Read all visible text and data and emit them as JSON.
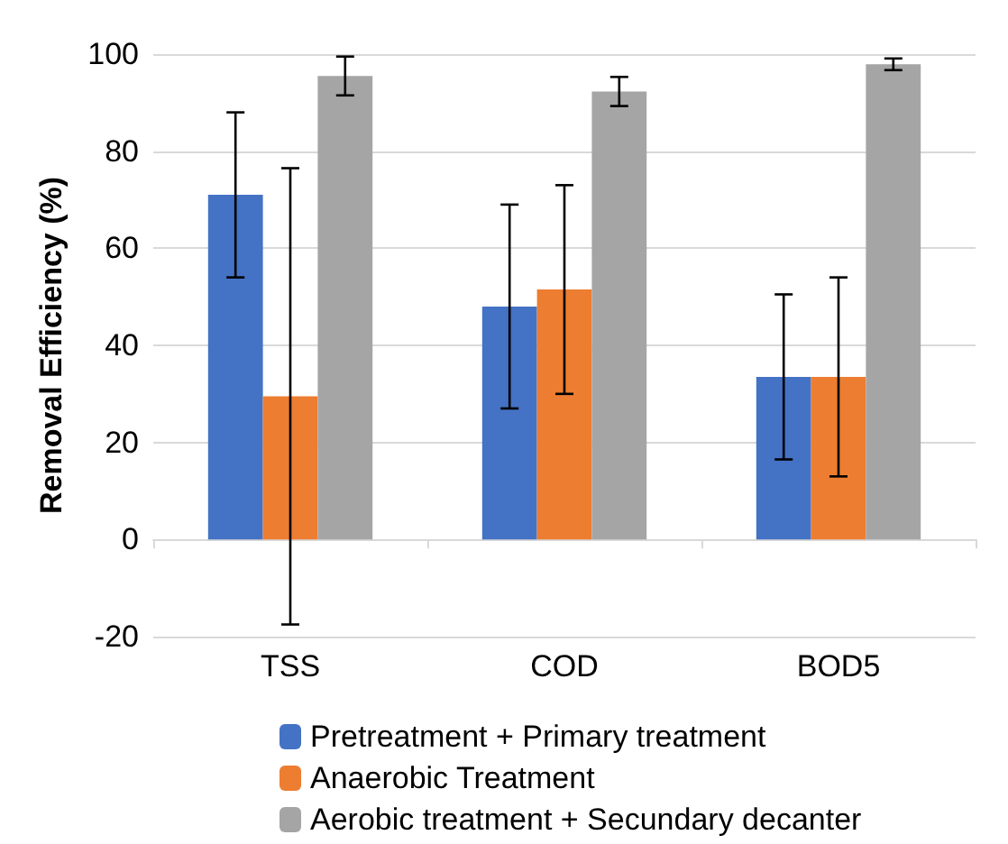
{
  "chart_data": {
    "type": "bar",
    "ylabel": "Removal Efficiency (%)",
    "categories": [
      "TSS",
      "COD",
      "BOD5"
    ],
    "series": [
      {
        "name": "Pretreatment + Primary treatment",
        "color": "#4472c4",
        "values": [
          71,
          48,
          33.5
        ],
        "errors": [
          17,
          21,
          17
        ]
      },
      {
        "name": "Anaerobic Treatment",
        "color": "#ed7d31",
        "values": [
          29.5,
          51.5,
          33.5
        ],
        "errors": [
          47,
          21.5,
          20.5
        ]
      },
      {
        "name": "Aerobic treatment + Secundary decanter",
        "color": "#a5a5a5",
        "values": [
          95.5,
          92.3,
          97.9
        ],
        "errors": [
          4,
          3,
          1.2
        ]
      }
    ],
    "ylim": [
      -20,
      100
    ],
    "yticks": [
      -20,
      0,
      20,
      40,
      60,
      80,
      100
    ],
    "grid": "y",
    "legend": "bottom"
  }
}
